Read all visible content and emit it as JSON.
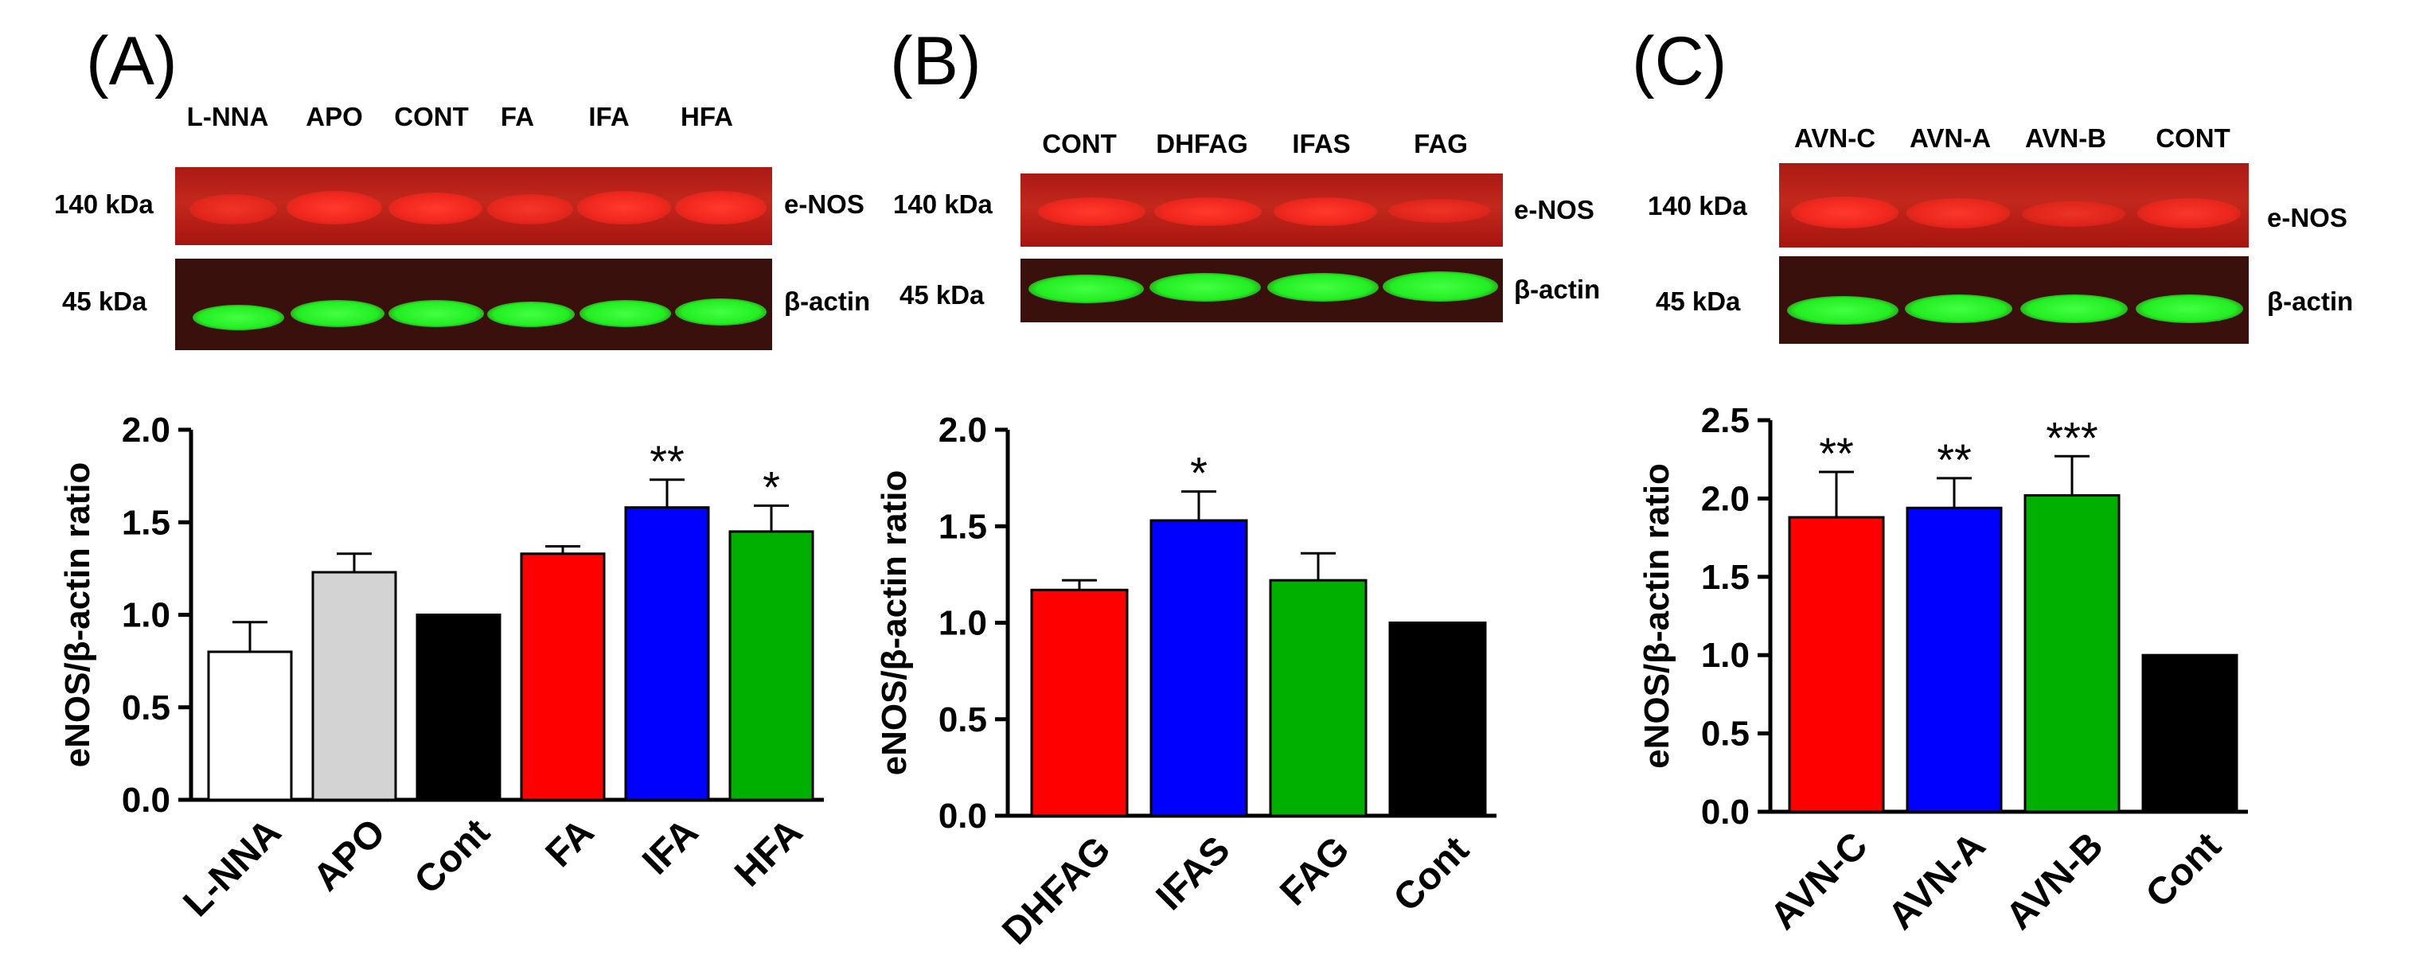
{
  "panels": [
    {
      "letter": "(A)",
      "lanes": [
        "L-NNA",
        "APO",
        "CONT",
        "FA",
        "IFA",
        "HFA"
      ],
      "blot_rows": [
        {
          "kda": "140 kDa",
          "protein": "e-NOS",
          "color": "red"
        },
        {
          "kda": "45 kDa",
          "protein": "β-actin",
          "color": "green"
        }
      ]
    },
    {
      "letter": "(B)",
      "lanes": [
        "CONT",
        "DHFAG",
        "IFAS",
        "FAG"
      ],
      "blot_rows": [
        {
          "kda": "140 kDa",
          "protein": "e-NOS",
          "color": "red"
        },
        {
          "kda": "45 kDa",
          "protein": "β-actin",
          "color": "green"
        }
      ]
    },
    {
      "letter": "(C)",
      "lanes": [
        "AVN-C",
        "AVN-A",
        "AVN-B",
        "CONT"
      ],
      "blot_rows": [
        {
          "kda": "140 kDa",
          "protein": "e-NOS",
          "color": "red"
        },
        {
          "kda": "45 kDa",
          "protein": "β-actin",
          "color": "green"
        }
      ]
    }
  ],
  "chart_data": [
    {
      "type": "bar",
      "categories": [
        "L-NNA",
        "APO",
        "Cont",
        "FA",
        "IFA",
        "HFA"
      ],
      "values": [
        0.8,
        1.23,
        1.0,
        1.33,
        1.58,
        1.45
      ],
      "errors": [
        0.16,
        0.1,
        0.0,
        0.04,
        0.15,
        0.14
      ],
      "significance": [
        "",
        "",
        "",
        "",
        "**",
        "*"
      ],
      "colors": [
        "#ffffff",
        "#d3d3d3",
        "#000000",
        "#ff0000",
        "#0000ff",
        "#00b000"
      ],
      "ylabel": "eNOS/β-actin ratio",
      "ylim": [
        0,
        2.0
      ],
      "yticks": [
        "0.0",
        "0.5",
        "1.0",
        "1.5",
        "2.0"
      ]
    },
    {
      "type": "bar",
      "categories": [
        "DHFAG",
        "IFAS",
        "FAG",
        "Cont"
      ],
      "values": [
        1.17,
        1.53,
        1.22,
        1.0
      ],
      "errors": [
        0.05,
        0.15,
        0.14,
        0.0
      ],
      "significance": [
        "",
        "*",
        "",
        ""
      ],
      "colors": [
        "#ff0000",
        "#0000ff",
        "#00b000",
        "#000000"
      ],
      "ylabel": "eNOS/β-actin ratio",
      "ylim": [
        0,
        2.0
      ],
      "yticks": [
        "0.0",
        "0.5",
        "1.0",
        "1.5",
        "2.0"
      ]
    },
    {
      "type": "bar",
      "categories": [
        "AVN-C",
        "AVN-A",
        "AVN-B",
        "Cont"
      ],
      "values": [
        1.88,
        1.94,
        2.02,
        1.0
      ],
      "errors": [
        0.29,
        0.19,
        0.25,
        0.0
      ],
      "significance": [
        "**",
        "**",
        "***",
        ""
      ],
      "colors": [
        "#ff0000",
        "#0000ff",
        "#00b000",
        "#000000"
      ],
      "ylabel": "eNOS/β-actin ratio",
      "ylim": [
        0,
        2.5
      ],
      "yticks": [
        "0.0",
        "0.5",
        "1.0",
        "1.5",
        "2.0",
        "2.5"
      ]
    }
  ]
}
